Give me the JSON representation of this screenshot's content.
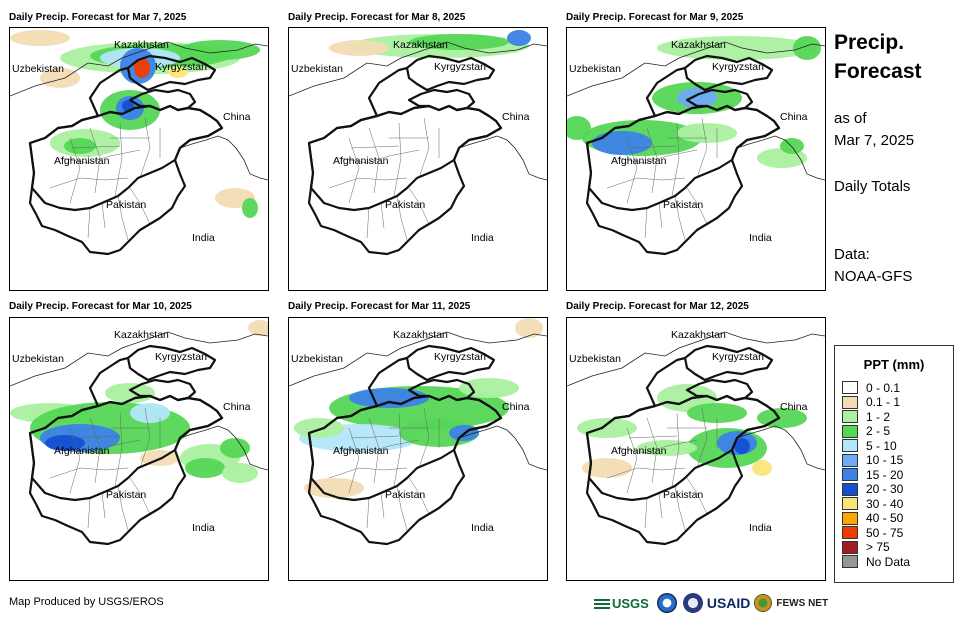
{
  "panels": [
    {
      "title": "Daily Precip. Forecast for Mar 7, 2025",
      "intensity": "heavy-north"
    },
    {
      "title": "Daily Precip. Forecast for Mar 8, 2025",
      "intensity": "light"
    },
    {
      "title": "Daily Precip. Forecast for Mar 9, 2025",
      "intensity": "moderate-west"
    },
    {
      "title": "Daily Precip. Forecast for Mar 10, 2025",
      "intensity": "moderate-center"
    },
    {
      "title": "Daily Precip. Forecast for Mar 11, 2025",
      "intensity": "moderate-band"
    },
    {
      "title": "Daily Precip. Forecast for Mar 12, 2025",
      "intensity": "moderate-east"
    }
  ],
  "map_labels": {
    "kazakhstan": "Kazakhstan",
    "uzbekistan": "Uzbekistan",
    "kyrgyzstan": "Kyrgyzstan",
    "china": "China",
    "afghanistan": "Afghanistan",
    "pakistan": "Pakistan",
    "india": "India"
  },
  "side": {
    "title": "Precip. Forecast",
    "as_of_label": "as of",
    "as_of_date": "Mar 7, 2025",
    "totals": "Daily Totals",
    "data_label": "Data:",
    "data_source": "NOAA-GFS"
  },
  "legend": {
    "title": "PPT (mm)",
    "items": [
      {
        "label": "0 - 0.1",
        "color": "#ffffff"
      },
      {
        "label": "0.1 - 1",
        "color": "#f2dcb4"
      },
      {
        "label": "1 - 2",
        "color": "#aaf0a0"
      },
      {
        "label": "2 - 5",
        "color": "#55d655"
      },
      {
        "label": "5 - 10",
        "color": "#b4e6fa"
      },
      {
        "label": "10 - 15",
        "color": "#6eaaf5"
      },
      {
        "label": "15 - 20",
        "color": "#3c82e6"
      },
      {
        "label": "20 - 30",
        "color": "#1450d2"
      },
      {
        "label": "30 - 40",
        "color": "#fae678"
      },
      {
        "label": "40 - 50",
        "color": "#faa500"
      },
      {
        "label": "50 - 75",
        "color": "#f03c00"
      },
      {
        "label": "> 75",
        "color": "#a01e1e"
      },
      {
        "label": "No Data",
        "color": "#969696"
      }
    ]
  },
  "credit": "Map Produced by USGS/EROS",
  "logos": {
    "usgs": "USGS",
    "usaid": "USAID",
    "fews": "FEWS NET"
  }
}
